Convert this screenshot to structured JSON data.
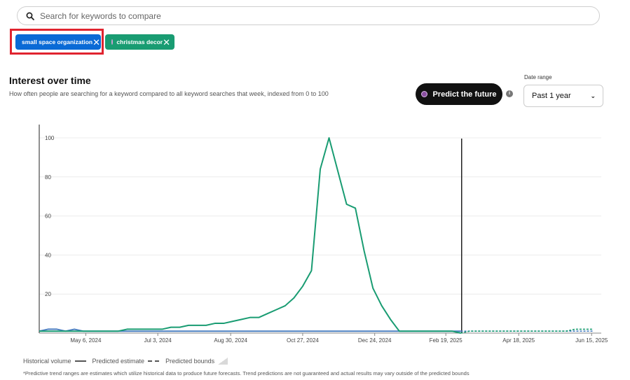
{
  "search": {
    "placeholder": "Search for keywords to compare",
    "icon": "search-icon"
  },
  "chips": [
    {
      "label": "small space organization",
      "color": "#0a6ad6",
      "close": "✕"
    },
    {
      "label": "christmas decor",
      "color": "#199c72",
      "close": "✕"
    }
  ],
  "header": {
    "title": "Interest over time",
    "subtitle": "How often people are searching for a keyword compared to all keyword searches that week, indexed from 0 to 100"
  },
  "predict_button": {
    "label": "Predict the future"
  },
  "info_icon": "i",
  "date_range": {
    "label": "Date range",
    "value": "Past 1 year"
  },
  "legend": {
    "historical": "Historical volume",
    "predicted": "Predicted estimate",
    "bounds": "Predicted bounds"
  },
  "footnote": "*Predictive trend ranges are estimates which utilize historical data to produce future forecasts. Trend predictions are not guaranteed and actual results may vary outside of the predicted bounds",
  "colors": {
    "series1": "#4a7fc0",
    "series2": "#199c72",
    "divider": "#111111"
  },
  "chart_data": {
    "type": "line",
    "ylim": [
      0,
      100
    ],
    "yticks": [
      20,
      40,
      60,
      80,
      100
    ],
    "xticks": [
      "May 6, 2024",
      "Jul 3, 2024",
      "Aug 30, 2024",
      "Oct 27, 2024",
      "Dec 24, 2024",
      "Feb 19, 2025",
      "Apr 18, 2025",
      "Jun 15, 2025"
    ],
    "xtick_weeks": [
      5.3,
      13.5,
      21.8,
      30,
      38.2,
      46.3,
      54.6,
      62.9
    ],
    "split_week": 48.1,
    "week_count": 64,
    "series": [
      {
        "name": "small space organization",
        "values": [
          1,
          2,
          2,
          1,
          2,
          1,
          1,
          1,
          1,
          1,
          1,
          1,
          1,
          1,
          1,
          1,
          1,
          1,
          1,
          1,
          1,
          1,
          1,
          1,
          1,
          1,
          1,
          1,
          1,
          1,
          1,
          1,
          1,
          1,
          1,
          1,
          1,
          1,
          1,
          1,
          1,
          1,
          1,
          1,
          1,
          1,
          1,
          1,
          1
        ],
        "predicted": [
          1,
          1,
          1,
          1,
          1,
          1,
          1,
          1,
          1,
          1,
          1,
          1,
          1,
          1,
          1,
          1
        ]
      },
      {
        "name": "christmas decor",
        "values": [
          1,
          1,
          1,
          1,
          1,
          1,
          1,
          1,
          1,
          1,
          2,
          2,
          2,
          2,
          2,
          3,
          3,
          4,
          4,
          4,
          5,
          5,
          6,
          7,
          8,
          8,
          10,
          12,
          14,
          18,
          24,
          32,
          84,
          100,
          83,
          66,
          64,
          42,
          23,
          14,
          7,
          1,
          1,
          1,
          1,
          1,
          1,
          1,
          0
        ],
        "predicted": [
          0,
          1,
          1,
          1,
          1,
          1,
          1,
          1,
          1,
          1,
          1,
          1,
          1,
          2,
          2,
          2
        ]
      }
    ]
  }
}
